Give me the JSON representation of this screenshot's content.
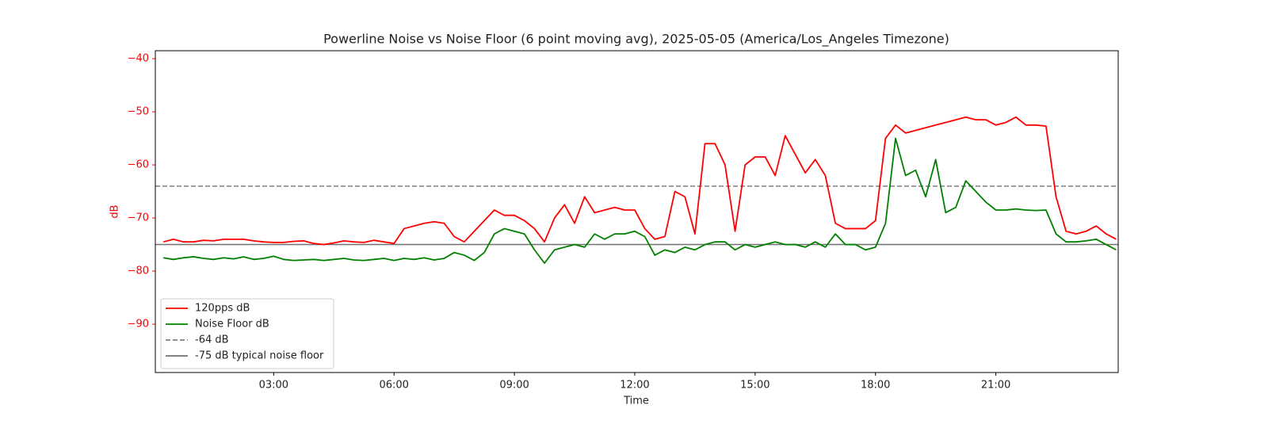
{
  "chart_data": {
    "type": "line",
    "title": "Powerline Noise vs Noise Floor (6 point moving avg), 2025-05-05 (America/Los_Angeles Timezone)",
    "x_label": "Time",
    "y_label": "dB",
    "y_axis_color": "#ff0000",
    "xlim": [
      0.05,
      24.05
    ],
    "ylim": [
      -99.1,
      -38.5
    ],
    "xticks": [
      {
        "value": 3,
        "label": "03:00"
      },
      {
        "value": 6,
        "label": "06:00"
      },
      {
        "value": 9,
        "label": "09:00"
      },
      {
        "value": 12,
        "label": "12:00"
      },
      {
        "value": 15,
        "label": "15:00"
      },
      {
        "value": 18,
        "label": "18:00"
      },
      {
        "value": 21,
        "label": "21:00"
      }
    ],
    "yticks": [
      {
        "value": -90,
        "label": "−90"
      },
      {
        "value": -80,
        "label": "−80"
      },
      {
        "value": -70,
        "label": "−70"
      },
      {
        "value": -60,
        "label": "−60"
      },
      {
        "value": -50,
        "label": "−50"
      },
      {
        "value": -40,
        "label": "−40"
      }
    ],
    "legend": "lower left",
    "x": [
      0.25,
      0.5,
      0.75,
      1,
      1.25,
      1.5,
      1.75,
      2,
      2.25,
      2.5,
      2.75,
      3,
      3.25,
      3.5,
      3.75,
      4,
      4.25,
      4.5,
      4.75,
      5,
      5.25,
      5.5,
      5.75,
      6,
      6.25,
      6.5,
      6.75,
      7,
      7.25,
      7.5,
      7.75,
      8,
      8.25,
      8.5,
      8.75,
      9,
      9.25,
      9.5,
      9.75,
      10,
      10.25,
      10.5,
      10.75,
      11,
      11.25,
      11.5,
      11.75,
      12,
      12.25,
      12.5,
      12.75,
      13,
      13.25,
      13.5,
      13.75,
      14,
      14.25,
      14.5,
      14.75,
      15,
      15.25,
      15.5,
      15.75,
      16,
      16.25,
      16.5,
      16.75,
      17,
      17.25,
      17.5,
      17.75,
      18,
      18.25,
      18.5,
      18.75,
      19,
      19.25,
      19.5,
      19.75,
      20,
      20.25,
      20.5,
      20.75,
      21,
      21.25,
      21.5,
      21.75,
      22,
      22.25,
      22.5,
      22.75,
      23,
      23.25,
      23.5,
      23.75,
      24
    ],
    "series": [
      {
        "name": "120pps dB",
        "color": "#ff0000",
        "values": [
          -74.5,
          -74,
          -74.5,
          -74.5,
          -74.2,
          -74.3,
          -74,
          -74,
          -74,
          -74.3,
          -74.5,
          -74.6,
          -74.6,
          -74.4,
          -74.3,
          -74.8,
          -75,
          -74.7,
          -74.3,
          -74.5,
          -74.6,
          -74.2,
          -74.5,
          -74.8,
          -72,
          -71.5,
          -71,
          -70.7,
          -71,
          -73.5,
          -74.5,
          -72.5,
          -70.5,
          -68.5,
          -69.5,
          -69.5,
          -70.5,
          -72,
          -74.5,
          -70,
          -67.5,
          -71,
          -66,
          -69,
          -68.5,
          -68,
          -68.5,
          -68.5,
          -72,
          -74,
          -73.5,
          -65,
          -66,
          -73,
          -56,
          -56,
          -60,
          -72.5,
          -60,
          -58.5,
          -58.5,
          -62,
          -54.5,
          -58,
          -61.5,
          -59,
          -62,
          -71,
          -72,
          -72,
          -72,
          -70.5,
          -55,
          -52.5,
          -54,
          -53.5,
          -53,
          -52.5,
          -52,
          -51.5,
          -51,
          -51.5,
          -51.5,
          -52.5,
          -52,
          -51,
          -52.5,
          -52.5,
          -52.7,
          -66,
          -72.5,
          -73,
          -72.5,
          -71.5,
          -73,
          -74
        ]
      },
      {
        "name": "Noise Floor dB",
        "color": "#008000",
        "values": [
          -77.5,
          -77.8,
          -77.5,
          -77.3,
          -77.6,
          -77.8,
          -77.5,
          -77.7,
          -77.3,
          -77.8,
          -77.6,
          -77.2,
          -77.8,
          -78,
          -77.9,
          -77.8,
          -78,
          -77.8,
          -77.6,
          -77.9,
          -78,
          -77.8,
          -77.6,
          -78,
          -77.6,
          -77.8,
          -77.5,
          -77.9,
          -77.6,
          -76.5,
          -77,
          -78,
          -76.5,
          -73,
          -72,
          -72.5,
          -73,
          -76,
          -78.5,
          -76,
          -75.5,
          -75,
          -75.5,
          -73,
          -74,
          -73,
          -73,
          -72.5,
          -73.5,
          -77,
          -76,
          -76.5,
          -75.5,
          -76,
          -75,
          -74.5,
          -74.5,
          -76,
          -75,
          -75.5,
          -75,
          -74.5,
          -75,
          -75,
          -75.5,
          -74.5,
          -75.5,
          -73,
          -75,
          -75,
          -76,
          -75.5,
          -71,
          -55,
          -62,
          -61,
          -66,
          -59,
          -69,
          -68,
          -63,
          -65,
          -67,
          -68.5,
          -68.5,
          -68.3,
          -68.5,
          -68.6,
          -68.5,
          -73,
          -74.5,
          -74.5,
          -74.3,
          -74,
          -75,
          -76
        ]
      }
    ],
    "reference_lines": [
      {
        "name": "-64 dB",
        "value": -64,
        "color": "#808080",
        "style": "dashed"
      },
      {
        "name": "-75 dB typical noise floor",
        "value": -75,
        "color": "#707070",
        "style": "solid"
      }
    ]
  }
}
